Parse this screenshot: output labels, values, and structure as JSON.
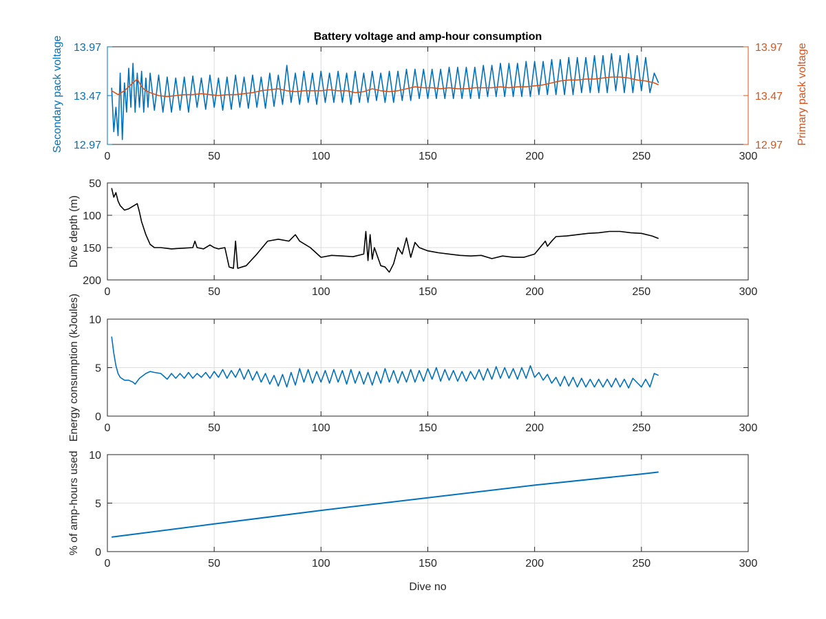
{
  "colors": {
    "blue": "#0072BD",
    "orange": "#D95319",
    "black": "#000000",
    "axis": "#262626",
    "grid": "#dcdcdc",
    "background": "#ffffff"
  },
  "chart_data": [
    {
      "type": "line",
      "title": "Battery voltage and amp-hour consumption",
      "xlabel": "",
      "ylabel_left": "Secondary pack voltage",
      "ylabel_right": "Primary pack voltage",
      "xlim": [
        0,
        300
      ],
      "ylim": [
        12.97,
        13.97
      ],
      "xticks": [
        0,
        50,
        100,
        150,
        200,
        250,
        300
      ],
      "xtick_labels": [
        "0",
        "50",
        "100",
        "150",
        "200",
        "250",
        "300"
      ],
      "yticks": [
        12.97,
        13.47,
        13.97
      ],
      "ytick_labels": [
        "12.97",
        "13.47",
        "13.97"
      ],
      "grid": true,
      "series": [
        {
          "name": "Secondary pack voltage",
          "axis": "left",
          "color": "#0072BD",
          "x": [
            2,
            3,
            4,
            5,
            6,
            7,
            8,
            9,
            10,
            11,
            12,
            13,
            14,
            15,
            16,
            17,
            18,
            19,
            20,
            22,
            24,
            26,
            28,
            30,
            32,
            34,
            36,
            38,
            40,
            42,
            44,
            46,
            48,
            50,
            52,
            54,
            56,
            58,
            60,
            62,
            64,
            66,
            68,
            70,
            72,
            74,
            76,
            78,
            80,
            82,
            84,
            86,
            88,
            90,
            92,
            94,
            96,
            98,
            100,
            102,
            104,
            106,
            108,
            110,
            112,
            114,
            116,
            118,
            120,
            122,
            124,
            126,
            128,
            130,
            132,
            134,
            136,
            138,
            140,
            142,
            144,
            146,
            148,
            150,
            152,
            154,
            156,
            158,
            160,
            162,
            164,
            166,
            168,
            170,
            172,
            174,
            176,
            178,
            180,
            182,
            184,
            186,
            188,
            190,
            192,
            194,
            196,
            198,
            200,
            202,
            204,
            206,
            208,
            210,
            212,
            214,
            216,
            218,
            220,
            222,
            224,
            226,
            228,
            230,
            232,
            234,
            236,
            238,
            240,
            242,
            244,
            246,
            248,
            250,
            252,
            254,
            256,
            258
          ],
          "values": [
            13.55,
            13.1,
            13.35,
            13.06,
            13.7,
            13.02,
            13.6,
            13.3,
            13.75,
            13.35,
            13.8,
            13.3,
            13.7,
            13.35,
            13.72,
            13.3,
            13.65,
            13.35,
            13.7,
            13.32,
            13.68,
            13.3,
            13.66,
            13.3,
            13.65,
            13.32,
            13.66,
            13.3,
            13.67,
            13.35,
            13.65,
            13.33,
            13.68,
            13.35,
            13.65,
            13.32,
            13.66,
            13.33,
            13.68,
            13.35,
            13.66,
            13.34,
            13.68,
            13.35,
            13.66,
            13.34,
            13.7,
            13.36,
            13.68,
            13.38,
            13.78,
            13.4,
            13.7,
            13.38,
            13.72,
            13.4,
            13.7,
            13.38,
            13.72,
            13.4,
            13.7,
            13.4,
            13.72,
            13.4,
            13.7,
            13.38,
            13.72,
            13.4,
            13.7,
            13.4,
            13.72,
            13.42,
            13.7,
            13.4,
            13.72,
            13.4,
            13.72,
            13.42,
            13.74,
            13.42,
            13.74,
            13.44,
            13.74,
            13.44,
            13.74,
            13.44,
            13.74,
            13.44,
            13.76,
            13.44,
            13.76,
            13.44,
            13.76,
            13.44,
            13.76,
            13.44,
            13.78,
            13.46,
            13.78,
            13.46,
            13.8,
            13.46,
            13.8,
            13.46,
            13.8,
            13.46,
            13.82,
            13.46,
            13.82,
            13.48,
            13.82,
            13.48,
            13.84,
            13.48,
            13.84,
            13.48,
            13.86,
            13.48,
            13.86,
            13.5,
            13.86,
            13.5,
            13.88,
            13.5,
            13.88,
            13.5,
            13.9,
            13.52,
            13.88,
            13.5,
            13.9,
            13.5,
            13.88,
            13.52,
            13.86,
            13.5,
            13.7,
            13.6
          ]
        },
        {
          "name": "Primary pack voltage",
          "axis": "right",
          "color": "#D95319",
          "x": [
            2,
            5,
            8,
            10,
            12,
            14,
            16,
            18,
            20,
            24,
            28,
            32,
            36,
            40,
            44,
            48,
            52,
            56,
            60,
            64,
            68,
            72,
            76,
            80,
            84,
            88,
            92,
            96,
            100,
            104,
            108,
            112,
            116,
            120,
            124,
            128,
            132,
            136,
            140,
            144,
            148,
            152,
            156,
            160,
            164,
            168,
            172,
            176,
            180,
            184,
            188,
            192,
            196,
            200,
            204,
            208,
            212,
            216,
            220,
            224,
            228,
            232,
            236,
            240,
            244,
            248,
            252,
            256,
            258
          ],
          "values": [
            13.52,
            13.48,
            13.52,
            13.56,
            13.6,
            13.64,
            13.56,
            13.52,
            13.5,
            13.47,
            13.46,
            13.47,
            13.48,
            13.48,
            13.49,
            13.48,
            13.47,
            13.48,
            13.48,
            13.49,
            13.5,
            13.52,
            13.53,
            13.54,
            13.52,
            13.51,
            13.52,
            13.52,
            13.52,
            13.53,
            13.52,
            13.52,
            13.5,
            13.51,
            13.54,
            13.52,
            13.51,
            13.52,
            13.54,
            13.56,
            13.55,
            13.55,
            13.54,
            13.55,
            13.54,
            13.54,
            13.55,
            13.55,
            13.55,
            13.56,
            13.55,
            13.56,
            13.56,
            13.57,
            13.58,
            13.6,
            13.62,
            13.63,
            13.63,
            13.64,
            13.64,
            13.65,
            13.66,
            13.66,
            13.65,
            13.63,
            13.62,
            13.6,
            13.58
          ]
        }
      ]
    },
    {
      "type": "line",
      "title": "",
      "xlabel": "",
      "ylabel": "Dive depth (m)",
      "xlim": [
        0,
        300
      ],
      "ylim": [
        50,
        200
      ],
      "y_reversed": true,
      "xticks": [
        0,
        50,
        100,
        150,
        200,
        250,
        300
      ],
      "xtick_labels": [
        "0",
        "50",
        "100",
        "150",
        "200",
        "250",
        "300"
      ],
      "yticks": [
        50,
        100,
        150,
        200
      ],
      "ytick_labels": [
        "50",
        "100",
        "150",
        "200"
      ],
      "grid": true,
      "series": [
        {
          "name": "",
          "color": "#000000",
          "x": [
            2,
            3,
            4,
            5,
            6,
            8,
            10,
            12,
            14,
            15,
            16,
            18,
            20,
            22,
            25,
            30,
            35,
            40,
            41,
            42,
            45,
            48,
            50,
            52,
            55,
            57,
            59,
            60,
            61,
            63,
            65,
            70,
            75,
            80,
            85,
            88,
            90,
            95,
            100,
            105,
            110,
            115,
            120,
            121,
            122,
            123,
            124,
            125,
            128,
            130,
            132,
            134,
            136,
            138,
            140,
            142,
            144,
            146,
            150,
            155,
            160,
            165,
            170,
            175,
            180,
            185,
            190,
            195,
            200,
            203,
            205,
            206,
            208,
            210,
            215,
            220,
            225,
            230,
            235,
            240,
            245,
            250,
            255,
            258
          ],
          "values": [
            58,
            72,
            65,
            78,
            85,
            92,
            90,
            86,
            82,
            95,
            110,
            130,
            145,
            150,
            150,
            152,
            151,
            150,
            140,
            150,
            152,
            146,
            150,
            152,
            150,
            180,
            182,
            140,
            182,
            180,
            178,
            160,
            140,
            137,
            140,
            130,
            140,
            150,
            165,
            162,
            163,
            164,
            160,
            125,
            170,
            130,
            168,
            150,
            178,
            180,
            188,
            175,
            150,
            160,
            135,
            165,
            142,
            150,
            155,
            158,
            160,
            162,
            163,
            162,
            167,
            163,
            165,
            165,
            160,
            148,
            140,
            148,
            140,
            133,
            132,
            130,
            128,
            127,
            125,
            125,
            127,
            128,
            132,
            136
          ]
        }
      ]
    },
    {
      "type": "line",
      "title": "",
      "xlabel": "",
      "ylabel": "Energy consumption (kJoules)",
      "xlim": [
        0,
        300
      ],
      "ylim": [
        0,
        10
      ],
      "xticks": [
        0,
        50,
        100,
        150,
        200,
        250,
        300
      ],
      "xtick_labels": [
        "0",
        "50",
        "100",
        "150",
        "200",
        "250",
        "300"
      ],
      "yticks": [
        0,
        5,
        10
      ],
      "ytick_labels": [
        "0",
        "5",
        "10"
      ],
      "grid": true,
      "series": [
        {
          "name": "",
          "color": "#0072BD",
          "x": [
            2,
            3,
            4,
            5,
            6,
            8,
            10,
            12,
            13,
            15,
            18,
            20,
            22,
            25,
            28,
            30,
            32,
            34,
            36,
            38,
            40,
            42,
            44,
            46,
            48,
            50,
            52,
            54,
            56,
            58,
            60,
            62,
            64,
            66,
            68,
            70,
            72,
            74,
            76,
            78,
            80,
            82,
            84,
            86,
            88,
            90,
            92,
            94,
            96,
            98,
            100,
            102,
            104,
            106,
            108,
            110,
            112,
            114,
            116,
            118,
            120,
            122,
            124,
            126,
            128,
            130,
            132,
            134,
            136,
            138,
            140,
            142,
            144,
            146,
            148,
            150,
            152,
            154,
            156,
            158,
            160,
            162,
            164,
            166,
            168,
            170,
            172,
            174,
            176,
            178,
            180,
            182,
            184,
            186,
            188,
            190,
            192,
            194,
            196,
            198,
            200,
            202,
            204,
            206,
            208,
            210,
            212,
            214,
            216,
            218,
            220,
            222,
            224,
            226,
            228,
            230,
            232,
            234,
            236,
            238,
            240,
            242,
            244,
            246,
            250,
            252,
            254,
            256,
            258
          ],
          "values": [
            8.2,
            6.5,
            5.2,
            4.4,
            4.0,
            3.7,
            3.7,
            3.5,
            3.3,
            3.9,
            4.4,
            4.6,
            4.5,
            4.4,
            3.8,
            4.4,
            3.9,
            4.4,
            3.9,
            4.5,
            3.9,
            4.4,
            4.0,
            4.5,
            3.9,
            4.6,
            4.0,
            4.8,
            3.9,
            4.7,
            4.0,
            4.9,
            3.8,
            4.8,
            3.7,
            4.6,
            3.5,
            4.4,
            3.3,
            4.2,
            3.1,
            4.3,
            3.0,
            4.5,
            3.2,
            4.9,
            3.5,
            4.8,
            3.4,
            4.6,
            3.5,
            4.7,
            3.4,
            4.8,
            3.5,
            4.7,
            3.3,
            4.8,
            3.4,
            4.6,
            3.3,
            4.5,
            3.2,
            4.6,
            3.4,
            4.9,
            3.5,
            4.7,
            3.4,
            4.6,
            3.5,
            4.8,
            3.5,
            4.7,
            3.6,
            4.9,
            3.8,
            5.0,
            3.6,
            4.8,
            3.7,
            4.7,
            3.6,
            4.6,
            3.6,
            4.6,
            3.8,
            4.8,
            3.7,
            4.9,
            3.8,
            5.1,
            3.9,
            5.0,
            3.9,
            4.9,
            3.8,
            5.0,
            3.9,
            5.2,
            4.0,
            4.5,
            3.7,
            4.3,
            3.4,
            4.0,
            3.1,
            4.1,
            3.1,
            4.0,
            3.0,
            3.9,
            3.0,
            3.8,
            3.0,
            3.8,
            3.0,
            3.8,
            3.0,
            3.9,
            3.0,
            3.8,
            2.9,
            3.9,
            3.0,
            3.8,
            3.0,
            4.4,
            4.2
          ]
        }
      ]
    },
    {
      "type": "line",
      "title": "",
      "xlabel": "Dive no",
      "ylabel": "% of amp-hours used",
      "xlim": [
        0,
        300
      ],
      "ylim": [
        0,
        10
      ],
      "xticks": [
        0,
        50,
        100,
        150,
        200,
        250,
        300
      ],
      "xtick_labels": [
        "0",
        "50",
        "100",
        "150",
        "200",
        "250",
        "300"
      ],
      "yticks": [
        0,
        5,
        10
      ],
      "ytick_labels": [
        "0",
        "5",
        "10"
      ],
      "grid": true,
      "series": [
        {
          "name": "",
          "color": "#0072BD",
          "x": [
            2,
            50,
            100,
            150,
            200,
            250,
            258
          ],
          "values": [
            1.5,
            2.85,
            4.25,
            5.55,
            6.85,
            8.0,
            8.2
          ]
        }
      ]
    }
  ]
}
